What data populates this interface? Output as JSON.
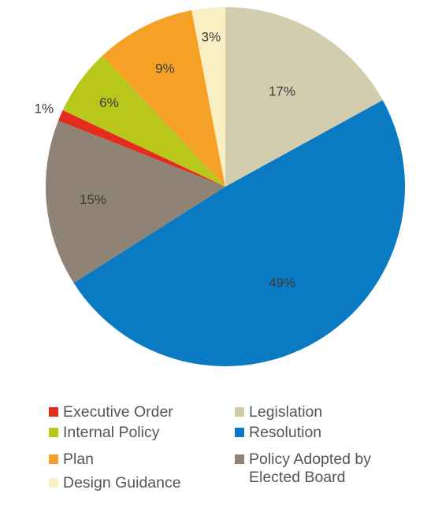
{
  "chart_data": {
    "type": "pie",
    "title": "",
    "slices": [
      {
        "label": "Legislation",
        "value": 17,
        "display": "17%",
        "color": "#d3cdaf"
      },
      {
        "label": "Resolution",
        "value": 49,
        "display": "49%",
        "color": "#0a7ac2"
      },
      {
        "label": "Policy Adopted by\nElected Board",
        "value": 15,
        "display": "15%",
        "color": "#8f8376"
      },
      {
        "label": "Executive Order",
        "value": 1,
        "display": "1%",
        "color": "#e32b1e"
      },
      {
        "label": "Internal Policy",
        "value": 6,
        "display": "6%",
        "color": "#b9c61a"
      },
      {
        "label": "Plan",
        "value": 9,
        "display": "9%",
        "color": "#f5a127"
      },
      {
        "label": "Design Guidance",
        "value": 3,
        "display": "3%",
        "color": "#f8efc3"
      }
    ],
    "legend": {
      "placement": "bottom",
      "items": [
        {
          "label": "Executive Order",
          "color": "#e32b1e"
        },
        {
          "label": "Legislation",
          "color": "#d3cdaf"
        },
        {
          "label": "Internal Policy",
          "color": "#b9c61a"
        },
        {
          "label": "Resolution",
          "color": "#0a7ac2"
        },
        {
          "label": "Plan",
          "color": "#f5a127"
        },
        {
          "label": "Policy Adopted by\nElected Board",
          "color": "#8f8376"
        },
        {
          "label": "Design Guidance",
          "color": "#f8efc3"
        }
      ]
    }
  }
}
